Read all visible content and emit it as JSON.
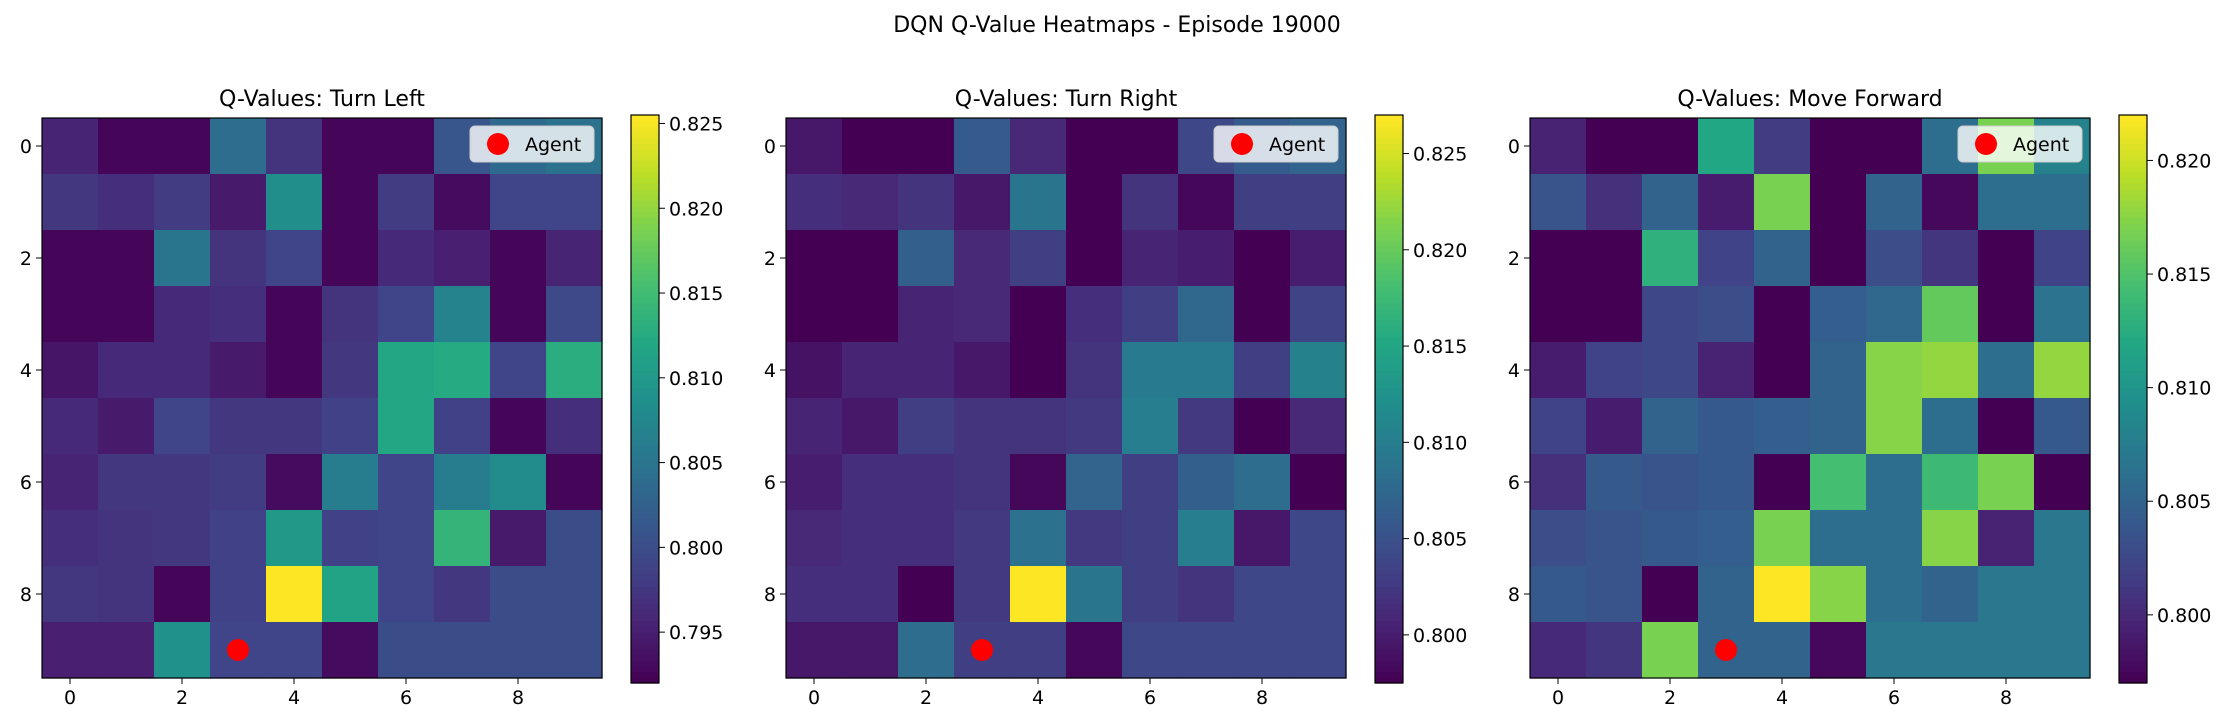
{
  "chart_data": {
    "type": "heatmap",
    "suptitle": "DQN Q-Value Heatmaps - Episode 19000",
    "colormap": "viridis",
    "agent": {
      "x": 3,
      "y": 9,
      "color": "#ff0000",
      "legend_label": "Agent"
    },
    "legend_placement": "top-right",
    "x_ticks": [
      0,
      2,
      4,
      6,
      8
    ],
    "y_ticks": [
      0,
      2,
      4,
      6,
      8
    ],
    "panels": [
      {
        "title": "Q-Values: Turn Left",
        "vmin": 0.792,
        "vmax": 0.8255,
        "colorbar_ticks": [
          "0.795",
          "0.800",
          "0.805",
          "0.810",
          "0.815",
          "0.820",
          "0.825"
        ],
        "colorbar_tick_values": [
          0.795,
          0.8,
          0.805,
          0.81,
          0.815,
          0.82,
          0.825
        ],
        "values": [
          [
            0.7955,
            0.7925,
            0.7925,
            0.804,
            0.797,
            0.7925,
            0.7925,
            0.801,
            0.8035,
            0.8045
          ],
          [
            0.7975,
            0.7965,
            0.798,
            0.7945,
            0.8085,
            0.7925,
            0.798,
            0.793,
            0.799,
            0.799
          ],
          [
            0.7925,
            0.7925,
            0.805,
            0.797,
            0.799,
            0.7925,
            0.796,
            0.795,
            0.7925,
            0.7955
          ],
          [
            0.7925,
            0.7925,
            0.796,
            0.7965,
            0.7925,
            0.797,
            0.799,
            0.807,
            0.7925,
            0.7995
          ],
          [
            0.794,
            0.796,
            0.796,
            0.7945,
            0.7925,
            0.7975,
            0.812,
            0.8125,
            0.799,
            0.813
          ],
          [
            0.796,
            0.7945,
            0.799,
            0.7975,
            0.7975,
            0.7985,
            0.812,
            0.7985,
            0.7925,
            0.7965
          ],
          [
            0.7955,
            0.7975,
            0.7975,
            0.798,
            0.793,
            0.806,
            0.799,
            0.806,
            0.808,
            0.7925
          ],
          [
            0.7965,
            0.797,
            0.7975,
            0.7985,
            0.81,
            0.7985,
            0.799,
            0.814,
            0.7945,
            0.8
          ],
          [
            0.7975,
            0.797,
            0.7925,
            0.7985,
            0.8255,
            0.8115,
            0.799,
            0.7975,
            0.8,
            0.8
          ],
          [
            0.795,
            0.795,
            0.809,
            0.799,
            0.799,
            0.793,
            0.8,
            0.8,
            0.8,
            0.8
          ]
        ]
      },
      {
        "title": "Q-Values: Turn Right",
        "vmin": 0.7975,
        "vmax": 0.827,
        "colorbar_ticks": [
          "0.800",
          "0.805",
          "0.810",
          "0.815",
          "0.820",
          "0.825"
        ],
        "colorbar_tick_values": [
          0.8,
          0.805,
          0.81,
          0.815,
          0.82,
          0.825
        ],
        "values": [
          [
            0.7995,
            0.7975,
            0.7975,
            0.806,
            0.801,
            0.7975,
            0.7975,
            0.804,
            0.806,
            0.807
          ],
          [
            0.8015,
            0.801,
            0.802,
            0.7995,
            0.809,
            0.7975,
            0.802,
            0.798,
            0.803,
            0.803
          ],
          [
            0.7975,
            0.7975,
            0.8065,
            0.801,
            0.803,
            0.7975,
            0.8005,
            0.8,
            0.7975,
            0.8
          ],
          [
            0.7975,
            0.7975,
            0.8005,
            0.801,
            0.7975,
            0.8015,
            0.803,
            0.8075,
            0.7975,
            0.8035
          ],
          [
            0.799,
            0.8005,
            0.8005,
            0.7995,
            0.7975,
            0.802,
            0.8095,
            0.8095,
            0.803,
            0.8105
          ],
          [
            0.8005,
            0.7995,
            0.803,
            0.802,
            0.802,
            0.8025,
            0.81,
            0.8025,
            0.7975,
            0.801
          ],
          [
            0.8,
            0.8015,
            0.8015,
            0.802,
            0.798,
            0.807,
            0.803,
            0.8065,
            0.808,
            0.7975
          ],
          [
            0.801,
            0.8015,
            0.8015,
            0.8025,
            0.8085,
            0.8025,
            0.803,
            0.81,
            0.7995,
            0.804
          ],
          [
            0.8015,
            0.8015,
            0.7975,
            0.8025,
            0.827,
            0.809,
            0.803,
            0.802,
            0.804,
            0.804
          ],
          [
            0.7995,
            0.7995,
            0.808,
            0.803,
            0.803,
            0.798,
            0.804,
            0.804,
            0.804,
            0.804
          ]
        ]
      },
      {
        "title": "Q-Values: Move Forward",
        "vmin": 0.797,
        "vmax": 0.822,
        "colorbar_ticks": [
          "0.800",
          "0.805",
          "0.810",
          "0.815",
          "0.820"
        ],
        "colorbar_tick_values": [
          0.8,
          0.805,
          0.81,
          0.815,
          0.82
        ],
        "values": [
          [
            0.7995,
            0.797,
            0.797,
            0.812,
            0.8015,
            0.797,
            0.797,
            0.806,
            0.817,
            0.808
          ],
          [
            0.8035,
            0.8005,
            0.805,
            0.799,
            0.817,
            0.797,
            0.805,
            0.7975,
            0.806,
            0.806
          ],
          [
            0.797,
            0.797,
            0.813,
            0.802,
            0.805,
            0.797,
            0.803,
            0.801,
            0.797,
            0.802
          ],
          [
            0.797,
            0.797,
            0.8025,
            0.803,
            0.797,
            0.8045,
            0.8055,
            0.816,
            0.797,
            0.8065
          ],
          [
            0.799,
            0.802,
            0.8025,
            0.7995,
            0.797,
            0.805,
            0.8175,
            0.818,
            0.806,
            0.818
          ],
          [
            0.802,
            0.799,
            0.805,
            0.804,
            0.8045,
            0.805,
            0.8175,
            0.806,
            0.797,
            0.804
          ],
          [
            0.8005,
            0.804,
            0.8035,
            0.804,
            0.797,
            0.8145,
            0.806,
            0.814,
            0.817,
            0.797
          ],
          [
            0.803,
            0.8035,
            0.804,
            0.8045,
            0.817,
            0.806,
            0.806,
            0.8175,
            0.7995,
            0.807
          ],
          [
            0.804,
            0.8035,
            0.797,
            0.805,
            0.822,
            0.8175,
            0.806,
            0.805,
            0.807,
            0.807
          ],
          [
            0.8,
            0.801,
            0.817,
            0.805,
            0.805,
            0.7975,
            0.807,
            0.807,
            0.807,
            0.807
          ]
        ]
      }
    ]
  }
}
